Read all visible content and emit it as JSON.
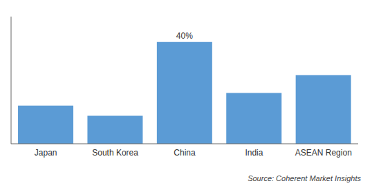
{
  "chart_data": {
    "type": "bar",
    "categories": [
      "Japan",
      "South Korea",
      "China",
      "India",
      "ASEAN Region"
    ],
    "values": [
      15,
      11,
      40,
      20,
      27
    ],
    "color": "#5b9bd5",
    "ylim": [
      0,
      50
    ],
    "grid": false,
    "tick_labels": "x",
    "annotations": [
      {
        "text": "40%",
        "x": "China"
      },
      {
        "text": "Source: Coherent Market Insights"
      }
    ]
  }
}
